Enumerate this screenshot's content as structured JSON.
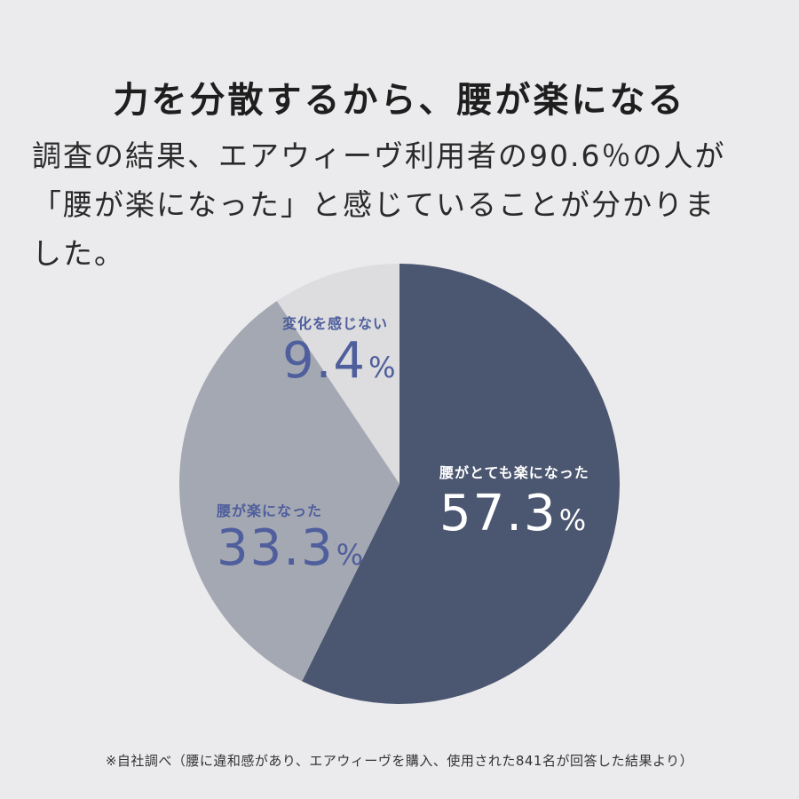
{
  "title": "力を分散するから、腰が楽になる",
  "description_lines": [
    "調査の結果、エアウィーヴ利用者の90.6％の人が",
    "「腰が楽になった」と感じていることが分かりま",
    "した。"
  ],
  "chart_data": {
    "type": "pie",
    "title": "",
    "start": "top",
    "direction": "clockwise",
    "unit": "%",
    "slices": [
      {
        "label": "腰がとても楽になった",
        "value": 57.3,
        "value_text": "57.3",
        "color": "#4b5670",
        "label_color": "#ffffff"
      },
      {
        "label": "腰が楽になった",
        "value": 33.3,
        "value_text": "33.3",
        "color": "#a3a8b2",
        "label_color": "#4f5e9c"
      },
      {
        "label": "変化を感じない",
        "value": 9.4,
        "value_text": "9.4",
        "color": "#dddddf",
        "label_color": "#4f5e9c"
      }
    ]
  },
  "footnote": "※自社調べ（腰に違和感があり、エアウィーヴを購入、使用された841名が回答した結果より）",
  "colors": {
    "background": "#ebebed"
  }
}
